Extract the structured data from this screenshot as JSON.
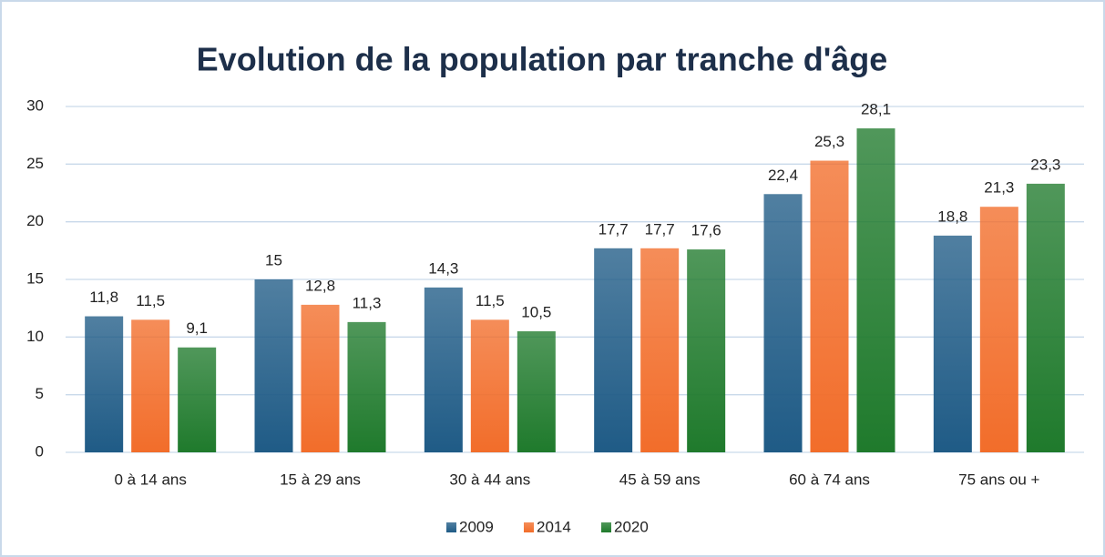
{
  "chart_data": {
    "type": "bar",
    "title": "Evolution de la population par tranche d'âge",
    "categories": [
      "0 à 14 ans",
      "15 à 29 ans",
      "30 à 44 ans",
      "45 à 59 ans",
      "60 à 74 ans",
      "75 ans ou +"
    ],
    "series": [
      {
        "name": "2009",
        "color": "#1f5b86",
        "values": [
          11.8,
          15,
          14.3,
          17.7,
          22.4,
          18.8
        ],
        "value_labels": [
          "11,8",
          "15",
          "14,3",
          "17,7",
          "22,4",
          "18,8"
        ]
      },
      {
        "name": "2014",
        "color": "#f26d2a",
        "values": [
          11.5,
          12.8,
          11.5,
          17.7,
          25.3,
          21.3
        ],
        "value_labels": [
          "11,5",
          "12,8",
          "11,5",
          "17,7",
          "25,3",
          "21,3"
        ]
      },
      {
        "name": "2020",
        "color": "#1f7a2c",
        "values": [
          9.1,
          11.3,
          10.5,
          17.6,
          28.1,
          23.3
        ],
        "value_labels": [
          "9,1",
          "11,3",
          "10,5",
          "17,6",
          "28,1",
          "23,3"
        ]
      }
    ],
    "ylim": [
      0,
      30
    ],
    "yticks": [
      0,
      5,
      10,
      15,
      20,
      25,
      30
    ],
    "grid": true,
    "legend": "bottom"
  }
}
